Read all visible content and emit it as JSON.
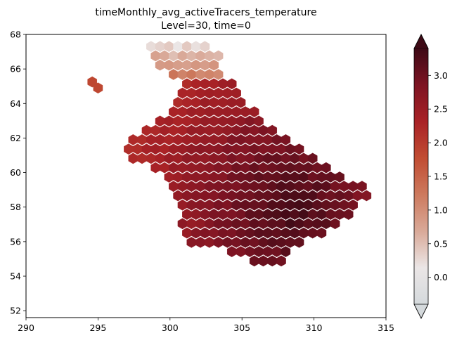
{
  "chart_data": {
    "type": "heatmap",
    "title": "timeMonthly_avg_activeTracers_temperature",
    "subtitle": "Level=30, time=0",
    "xlabel": "",
    "ylabel": "",
    "xlim": [
      290,
      315
    ],
    "ylim": [
      51.6,
      68
    ],
    "x_ticks": [
      "290",
      "295",
      "300",
      "305",
      "310",
      "315"
    ],
    "y_ticks": [
      "52",
      "54",
      "56",
      "58",
      "60",
      "62",
      "64",
      "66",
      "68"
    ],
    "grid": false,
    "colorbar": {
      "range": [
        -0.4,
        3.4
      ],
      "extend": "both",
      "ticks": [
        "0.0",
        "0.5",
        "1.0",
        "1.5",
        "2.0",
        "2.5",
        "3.0"
      ],
      "colors": [
        "#d4d9dc",
        "#ebe6e6",
        "#d9a998",
        "#cd7a5e",
        "#c14d33",
        "#a92226",
        "#7d1423",
        "#3e0a16"
      ]
    },
    "cell_groups": [
      {
        "region": "main basin",
        "lon": [
          297.0,
          314.0
        ],
        "lat": [
          54.3,
          67.0
        ],
        "value_range": [
          2.1,
          3.4
        ]
      },
      {
        "region": "northern edge",
        "lon": [
          298.5,
          303.5
        ],
        "lat": [
          65.3,
          67.5
        ],
        "value_range": [
          -0.1,
          1.2
        ]
      },
      {
        "region": "isolated patch",
        "lon": [
          294.3,
          295.1
        ],
        "lat": [
          64.8,
          65.4
        ],
        "value_range": [
          1.8,
          1.9
        ]
      }
    ]
  }
}
